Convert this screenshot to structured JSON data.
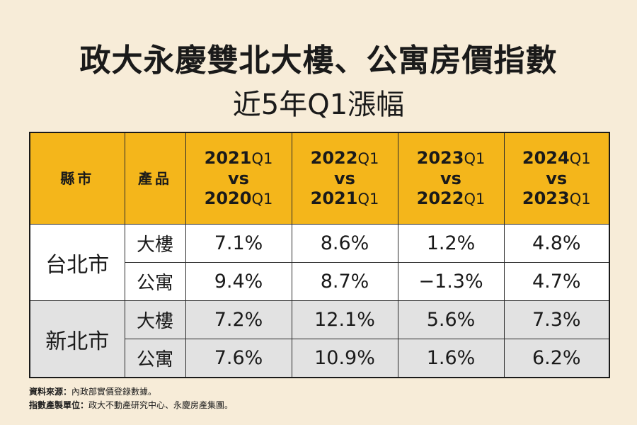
{
  "title": "政大永慶雙北大樓、公寓房價指數",
  "subtitle": "近5年Q1漲幅",
  "headers": {
    "city": "縣市",
    "product": "產品",
    "periods": [
      {
        "top_year": "2021",
        "top_q": "Q1",
        "vs": "vs",
        "bottom_year": "2020",
        "bottom_q": "Q1"
      },
      {
        "top_year": "2022",
        "top_q": "Q1",
        "vs": "vs",
        "bottom_year": "2021",
        "bottom_q": "Q1"
      },
      {
        "top_year": "2023",
        "top_q": "Q1",
        "vs": "vs",
        "bottom_year": "2022",
        "bottom_q": "Q1"
      },
      {
        "top_year": "2024",
        "top_q": "Q1",
        "vs": "vs",
        "bottom_year": "2023",
        "bottom_q": "Q1"
      }
    ]
  },
  "rows": [
    {
      "city": "台北市",
      "product": "大樓",
      "values": [
        "7.1%",
        "8.6%",
        "1.2%",
        "4.8%"
      ]
    },
    {
      "city": "台北市",
      "product": "公寓",
      "values": [
        "9.4%",
        "8.7%",
        "−1.3%",
        "4.7%"
      ]
    },
    {
      "city": "新北市",
      "product": "大樓",
      "values": [
        "7.2%",
        "12.1%",
        "5.6%",
        "7.3%"
      ]
    },
    {
      "city": "新北市",
      "product": "公寓",
      "values": [
        "7.6%",
        "10.9%",
        "1.6%",
        "6.2%"
      ]
    }
  ],
  "footer": {
    "source_label": "資料來源：",
    "source_text": "內政部實價登錄數據。",
    "producer_label": "指數產製單位：",
    "producer_text": "政大不動產研究中心、永慶房產集團。"
  }
}
